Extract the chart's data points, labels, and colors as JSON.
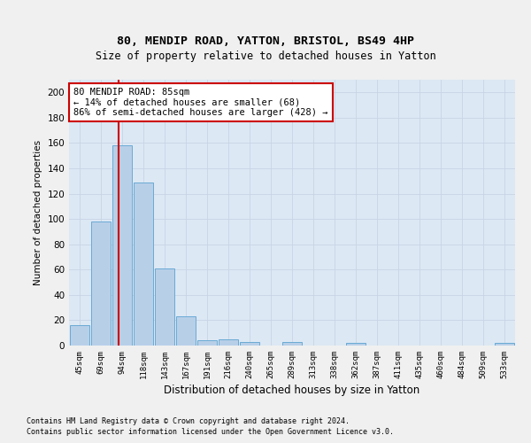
{
  "title1": "80, MENDIP ROAD, YATTON, BRISTOL, BS49 4HP",
  "title2": "Size of property relative to detached houses in Yatton",
  "xlabel": "Distribution of detached houses by size in Yatton",
  "ylabel": "Number of detached properties",
  "bin_labels": [
    "45sqm",
    "69sqm",
    "94sqm",
    "118sqm",
    "143sqm",
    "167sqm",
    "191sqm",
    "216sqm",
    "240sqm",
    "265sqm",
    "289sqm",
    "313sqm",
    "338sqm",
    "362sqm",
    "387sqm",
    "411sqm",
    "435sqm",
    "460sqm",
    "484sqm",
    "509sqm",
    "533sqm"
  ],
  "bar_values": [
    16,
    98,
    158,
    129,
    61,
    23,
    4,
    5,
    3,
    0,
    3,
    0,
    0,
    2,
    0,
    0,
    0,
    0,
    0,
    0,
    2
  ],
  "bar_color": "#b8cfe8",
  "bar_edge_color": "#6aaad4",
  "property_line_x": 1.82,
  "annotation_text": "80 MENDIP ROAD: 85sqm\n← 14% of detached houses are smaller (68)\n86% of semi-detached houses are larger (428) →",
  "vline_color": "#cc0000",
  "ylim": [
    0,
    210
  ],
  "yticks": [
    0,
    20,
    40,
    60,
    80,
    100,
    120,
    140,
    160,
    180,
    200
  ],
  "grid_color": "#c8d4e4",
  "bg_color": "#dce8f4",
  "fig_bg_color": "#f0f0f0",
  "footer1": "Contains HM Land Registry data © Crown copyright and database right 2024.",
  "footer2": "Contains public sector information licensed under the Open Government Licence v3.0."
}
